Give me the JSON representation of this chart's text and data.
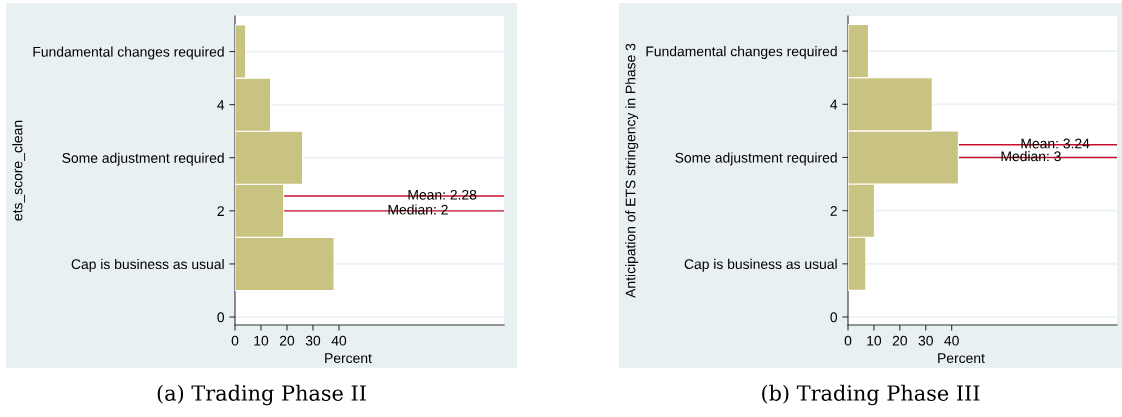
{
  "chart_data": [
    {
      "type": "histogram",
      "orientation": "horizontal",
      "title": "(a) Trading Phase II",
      "xlabel": "Percent",
      "ylabel": "ets_score_clean",
      "bins": [
        0.5,
        1.5,
        2.5,
        3.5,
        4.5,
        5.5
      ],
      "values": [
        38.1,
        18.7,
        26,
        13.7,
        4.1
      ],
      "color": "#c9c382",
      "xlim": [
        0,
        103.5
      ],
      "xticks": [
        0,
        10,
        20,
        30,
        40
      ],
      "ylim": [
        -0.15,
        5.67
      ],
      "yticks": [
        0,
        {
          "value": 1,
          "label": "Cap is business as usual"
        },
        2,
        {
          "value": 3,
          "label": "Some adjustment required"
        },
        4,
        {
          "value": 5,
          "label": "Fundamental changes required"
        }
      ],
      "grid": "y",
      "ref_lines": [
        {
          "axis": "y",
          "value": 2.28,
          "label": "Mean: 2.28",
          "color": "#c8102e"
        },
        {
          "axis": "y",
          "value": 2,
          "label": "Median: 2",
          "color": "#c8102e"
        }
      ]
    },
    {
      "type": "histogram",
      "orientation": "horizontal",
      "title": "(b) Trading Phase III",
      "xlabel": "Percent",
      "ylabel": "Anticipation of ETS stringency in Phase 3",
      "bins": [
        0.5,
        1.5,
        2.5,
        3.5,
        4.5,
        5.5
      ],
      "values": [
        6.9,
        10.2,
        42.6,
        32.5,
        7.9
      ],
      "color": "#c9c382",
      "xlim": [
        0,
        103.8
      ],
      "xticks": [
        0,
        10,
        20,
        30,
        40
      ],
      "ylim": [
        -0.15,
        5.66
      ],
      "yticks": [
        0,
        {
          "value": 1,
          "label": "Cap is business as usual"
        },
        2,
        {
          "value": 3,
          "label": "Some adjustment required"
        },
        4,
        {
          "value": 5,
          "label": "Fundamental changes required"
        }
      ],
      "grid": "y",
      "ref_lines": [
        {
          "axis": "y",
          "value": 3.24,
          "label": "Mean: 3.24",
          "color": "#c8102e"
        },
        {
          "axis": "y",
          "value": 3,
          "label": "Median: 3",
          "color": "#c8102e"
        }
      ]
    }
  ]
}
